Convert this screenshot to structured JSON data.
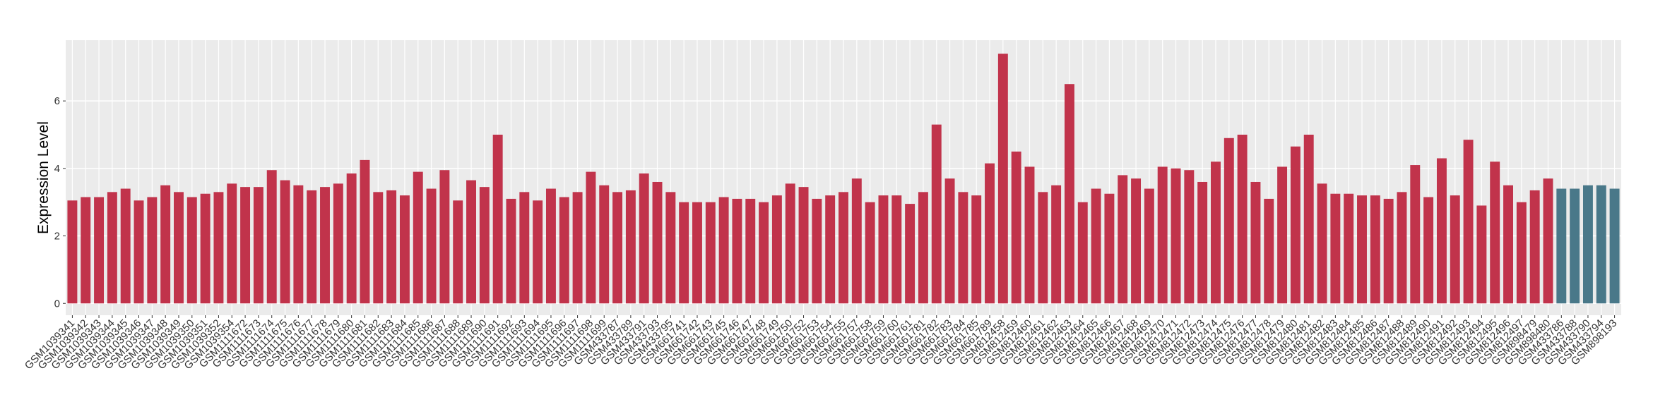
{
  "chart_data": {
    "type": "bar",
    "y_label": "Expression Level",
    "categories": [
      "GSM1039341",
      "GSM1039342",
      "GSM1039343",
      "GSM1039344",
      "GSM1039345",
      "GSM1039346",
      "GSM1039347",
      "GSM1039348",
      "GSM1039349",
      "GSM1039350",
      "GSM1039351",
      "GSM1039352",
      "GSM1039354",
      "GSM1111672",
      "GSM1111673",
      "GSM1111674",
      "GSM1111675",
      "GSM1111676",
      "GSM1111677",
      "GSM1111678",
      "GSM1111679",
      "GSM1111680",
      "GSM1111681",
      "GSM1111682",
      "GSM1111683",
      "GSM1111684",
      "GSM1111685",
      "GSM1111686",
      "GSM1111687",
      "GSM1111688",
      "GSM1111689",
      "GSM1111690",
      "GSM1111691",
      "GSM1111692",
      "GSM1111693",
      "GSM1111694",
      "GSM1111695",
      "GSM1111696",
      "GSM1111697",
      "GSM1111698",
      "GSM1111699",
      "GSM433787",
      "GSM433789",
      "GSM433791",
      "GSM433793",
      "GSM433795",
      "GSM661741",
      "GSM661742",
      "GSM661743",
      "GSM661745",
      "GSM661746",
      "GSM661747",
      "GSM661748",
      "GSM661749",
      "GSM661750",
      "GSM661752",
      "GSM661753",
      "GSM661754",
      "GSM661755",
      "GSM661757",
      "GSM661758",
      "GSM661759",
      "GSM661760",
      "GSM661761",
      "GSM661781",
      "GSM661782",
      "GSM661783",
      "GSM661784",
      "GSM661785",
      "GSM661789",
      "GSM812458",
      "GSM812459",
      "GSM812460",
      "GSM812461",
      "GSM812462",
      "GSM812463",
      "GSM812464",
      "GSM812465",
      "GSM812466",
      "GSM812467",
      "GSM812468",
      "GSM812469",
      "GSM812470",
      "GSM812471",
      "GSM812472",
      "GSM812473",
      "GSM812474",
      "GSM812475",
      "GSM812476",
      "GSM812477",
      "GSM812478",
      "GSM812479",
      "GSM812480",
      "GSM812481",
      "GSM812482",
      "GSM812483",
      "GSM812484",
      "GSM812485",
      "GSM812486",
      "GSM812487",
      "GSM812488",
      "GSM812489",
      "GSM812490",
      "GSM812491",
      "GSM812492",
      "GSM812493",
      "GSM812494",
      "GSM812495",
      "GSM812496",
      "GSM812497",
      "GSM898479",
      "GSM898480",
      "GSM433786",
      "GSM433788",
      "GSM433790",
      "GSM433794",
      "GSM898193"
    ],
    "values": [
      3.05,
      3.15,
      3.15,
      3.3,
      3.4,
      3.05,
      3.15,
      3.5,
      3.3,
      3.15,
      3.25,
      3.3,
      3.55,
      3.45,
      3.45,
      3.95,
      3.65,
      3.5,
      3.35,
      3.45,
      3.55,
      3.85,
      4.25,
      3.3,
      3.35,
      3.2,
      3.9,
      3.4,
      3.95,
      3.05,
      3.65,
      3.45,
      5.0,
      3.1,
      3.3,
      3.05,
      3.4,
      3.15,
      3.3,
      3.9,
      3.5,
      3.3,
      3.35,
      3.85,
      3.6,
      3.3,
      3.0,
      3.0,
      3.0,
      3.15,
      3.1,
      3.1,
      3.0,
      3.2,
      3.55,
      3.45,
      3.1,
      3.2,
      3.3,
      3.7,
      3.0,
      3.2,
      3.2,
      2.95,
      3.3,
      5.3,
      3.7,
      3.3,
      3.2,
      4.15,
      7.4,
      4.5,
      4.05,
      3.3,
      3.5,
      6.5,
      3.0,
      3.4,
      3.25,
      3.8,
      3.7,
      3.4,
      4.05,
      4.0,
      3.95,
      3.6,
      4.2,
      4.9,
      5.0,
      3.6,
      3.1,
      4.05,
      4.65,
      5.0,
      3.55,
      3.25,
      3.25,
      3.2,
      3.2,
      3.1,
      3.3,
      4.1,
      3.15,
      4.3,
      3.2,
      4.85,
      2.9,
      4.2,
      3.5,
      3.0,
      3.35,
      3.7,
      3.4,
      3.4,
      3.5,
      3.5,
      3.4
    ],
    "colors": [
      "#c1334b",
      "#c1334b",
      "#c1334b",
      "#c1334b",
      "#c1334b",
      "#c1334b",
      "#c1334b",
      "#c1334b",
      "#c1334b",
      "#c1334b",
      "#c1334b",
      "#c1334b",
      "#c1334b",
      "#c1334b",
      "#c1334b",
      "#c1334b",
      "#c1334b",
      "#c1334b",
      "#c1334b",
      "#c1334b",
      "#c1334b",
      "#c1334b",
      "#c1334b",
      "#c1334b",
      "#c1334b",
      "#c1334b",
      "#c1334b",
      "#c1334b",
      "#c1334b",
      "#c1334b",
      "#c1334b",
      "#c1334b",
      "#c1334b",
      "#c1334b",
      "#c1334b",
      "#c1334b",
      "#c1334b",
      "#c1334b",
      "#c1334b",
      "#c1334b",
      "#c1334b",
      "#c1334b",
      "#c1334b",
      "#c1334b",
      "#c1334b",
      "#c1334b",
      "#c1334b",
      "#c1334b",
      "#c1334b",
      "#c1334b",
      "#c1334b",
      "#c1334b",
      "#c1334b",
      "#c1334b",
      "#c1334b",
      "#c1334b",
      "#c1334b",
      "#c1334b",
      "#c1334b",
      "#c1334b",
      "#c1334b",
      "#c1334b",
      "#c1334b",
      "#c1334b",
      "#c1334b",
      "#c1334b",
      "#c1334b",
      "#c1334b",
      "#c1334b",
      "#c1334b",
      "#c1334b",
      "#c1334b",
      "#c1334b",
      "#c1334b",
      "#c1334b",
      "#c1334b",
      "#c1334b",
      "#c1334b",
      "#c1334b",
      "#c1334b",
      "#c1334b",
      "#c1334b",
      "#c1334b",
      "#c1334b",
      "#c1334b",
      "#c1334b",
      "#c1334b",
      "#c1334b",
      "#c1334b",
      "#c1334b",
      "#c1334b",
      "#c1334b",
      "#c1334b",
      "#c1334b",
      "#c1334b",
      "#c1334b",
      "#c1334b",
      "#c1334b",
      "#c1334b",
      "#c1334b",
      "#c1334b",
      "#c1334b",
      "#c1334b",
      "#c1334b",
      "#c1334b",
      "#c1334b",
      "#c1334b",
      "#c1334b",
      "#c1334b",
      "#c1334b",
      "#c1334b",
      "#c1334b",
      "#497889",
      "#497889",
      "#497889",
      "#497889",
      "#497889"
    ],
    "ylim": [
      -0.35,
      7.8
    ],
    "yticks": [
      0,
      2,
      4,
      6
    ],
    "grid": true
  }
}
